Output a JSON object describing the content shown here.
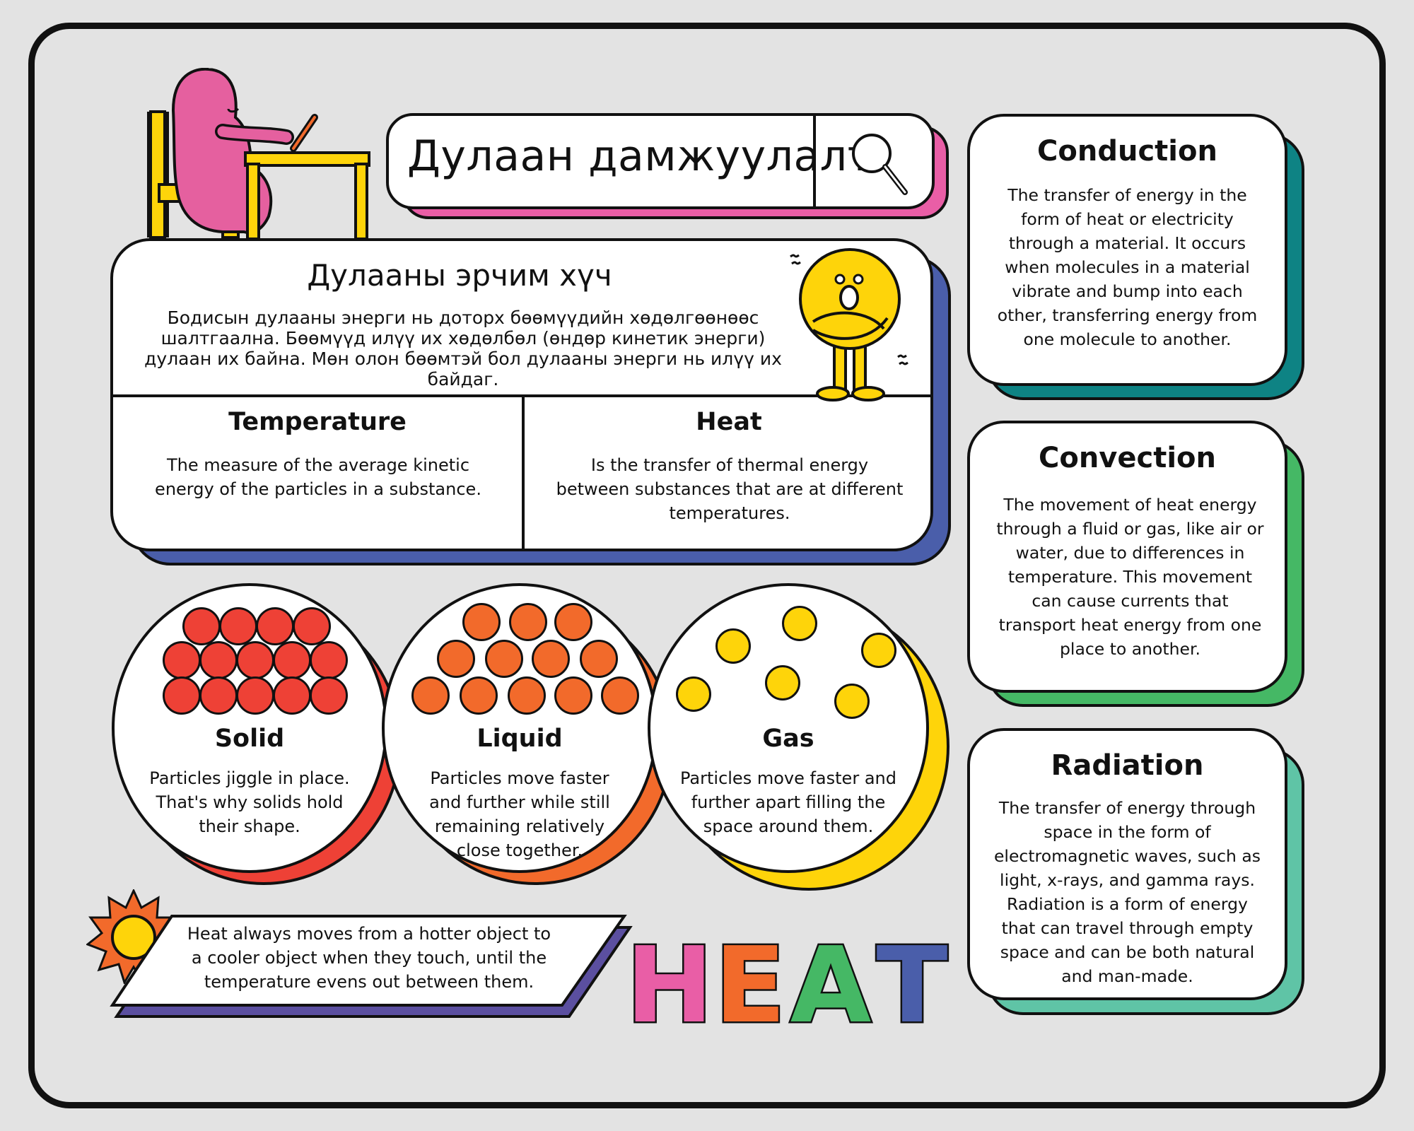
{
  "search": {
    "value": "Дулаан дамжуулалт",
    "icon": "magnifier-icon"
  },
  "thermal_energy": {
    "title": "Дулааны эрчим хүч",
    "description": "Бодисын дулааны энерги нь доторх бөөмүүдийн хөдөлгөөнөөс шалтгаална. Бөөмүүд илүү их хөдөлбөл (өндөр кинетик энерги) дулаан их байна. Мөн олон бөөмтэй бол дулааны энерги нь илүү их байдаг."
  },
  "temperature": {
    "title": "Temperature",
    "description": "The measure of the average kinetic energy of the particles in a substance."
  },
  "heat": {
    "title": "Heat",
    "description": "Is the transfer of thermal energy between substances that are at different temperatures."
  },
  "states": [
    {
      "title": "Solid",
      "description": "Particles jiggle in place. That's why solids hold their shape.",
      "color": "#ee4136",
      "shadow": "#ee4136"
    },
    {
      "title": "Liquid",
      "description": "Particles move faster and further while still remaining relatively close together.",
      "color": "#f26a2b",
      "shadow": "#f26a2b"
    },
    {
      "title": "Gas",
      "description": "Particles move faster and further apart filling the space around them.",
      "color": "#fed40a",
      "shadow": "#fed40a"
    }
  ],
  "conduction": {
    "title": "Conduction",
    "description": "The transfer of energy in the form of heat or electricity through a material. It occurs when molecules in a material vibrate and bump into each other, transferring energy from one molecule to another.",
    "color": "#0e8384"
  },
  "convection": {
    "title": "Convection",
    "description": "The movement of heat energy through a fluid or gas, like air or water, due to differences in temperature. This movement can cause currents that transport heat energy from one place to another.",
    "color": "#45b865"
  },
  "radiation": {
    "title": "Radiation",
    "description": "The transfer of energy through space in the form of electromagnetic waves, such as light, x-rays, and gamma rays. Radiation is a form of energy that can travel through empty space and can be both natural and man-made.",
    "color": "#5fc4a6"
  },
  "note": {
    "text": "Heat always moves from a hotter object to a cooler object when they touch, until the temperature evens out between them."
  },
  "heat_word": {
    "letters": [
      "H",
      "E",
      "A",
      "T"
    ],
    "colors": [
      "#e95ea6",
      "#f26a2b",
      "#45b865",
      "#4a5eaa"
    ]
  },
  "colors": {
    "background": "#e3e3e3",
    "search_accent": "#e95ea6",
    "main_accent": "#4a5eaa",
    "character_pink": "#e5609f",
    "character_yellow": "#fed40a"
  }
}
